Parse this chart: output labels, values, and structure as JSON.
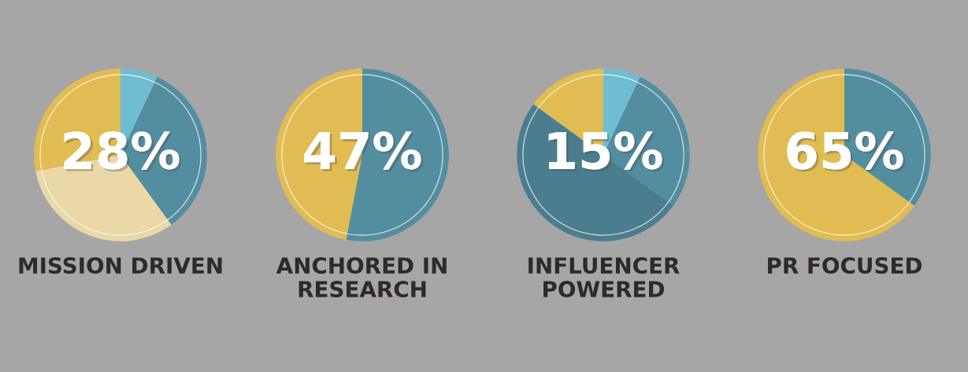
{
  "chart_data": [
    {
      "type": "pie",
      "title": "MISSION DRIVEN",
      "categories": [
        null,
        null,
        null,
        null
      ],
      "values": [
        7,
        33,
        32,
        28
      ],
      "colors": [
        "#6fbdd1",
        "#528ea0",
        "#ead9a6",
        "#e0bc52"
      ],
      "annotations": [
        "28%"
      ]
    },
    {
      "type": "pie",
      "title": "ANCHORED IN\nRESEARCH",
      "categories": [
        null,
        null
      ],
      "values": [
        53,
        47
      ],
      "colors": [
        "#528ea0",
        "#e0bc52"
      ],
      "annotations": [
        "47%"
      ]
    },
    {
      "type": "pie",
      "title": "INFLUENCER\nPOWERED",
      "categories": [
        null,
        null,
        null,
        null
      ],
      "values": [
        7,
        28,
        50,
        15
      ],
      "colors": [
        "#6fbdd1",
        "#528ea0",
        "#4a7e8f",
        "#e0bc52"
      ],
      "annotations": [
        "15%"
      ]
    },
    {
      "type": "pie",
      "title": "PR FOCUSED",
      "categories": [
        null,
        null
      ],
      "values": [
        35,
        65
      ],
      "colors": [
        "#528ea0",
        "#e0bc52"
      ],
      "annotations": [
        "65%"
      ]
    }
  ]
}
